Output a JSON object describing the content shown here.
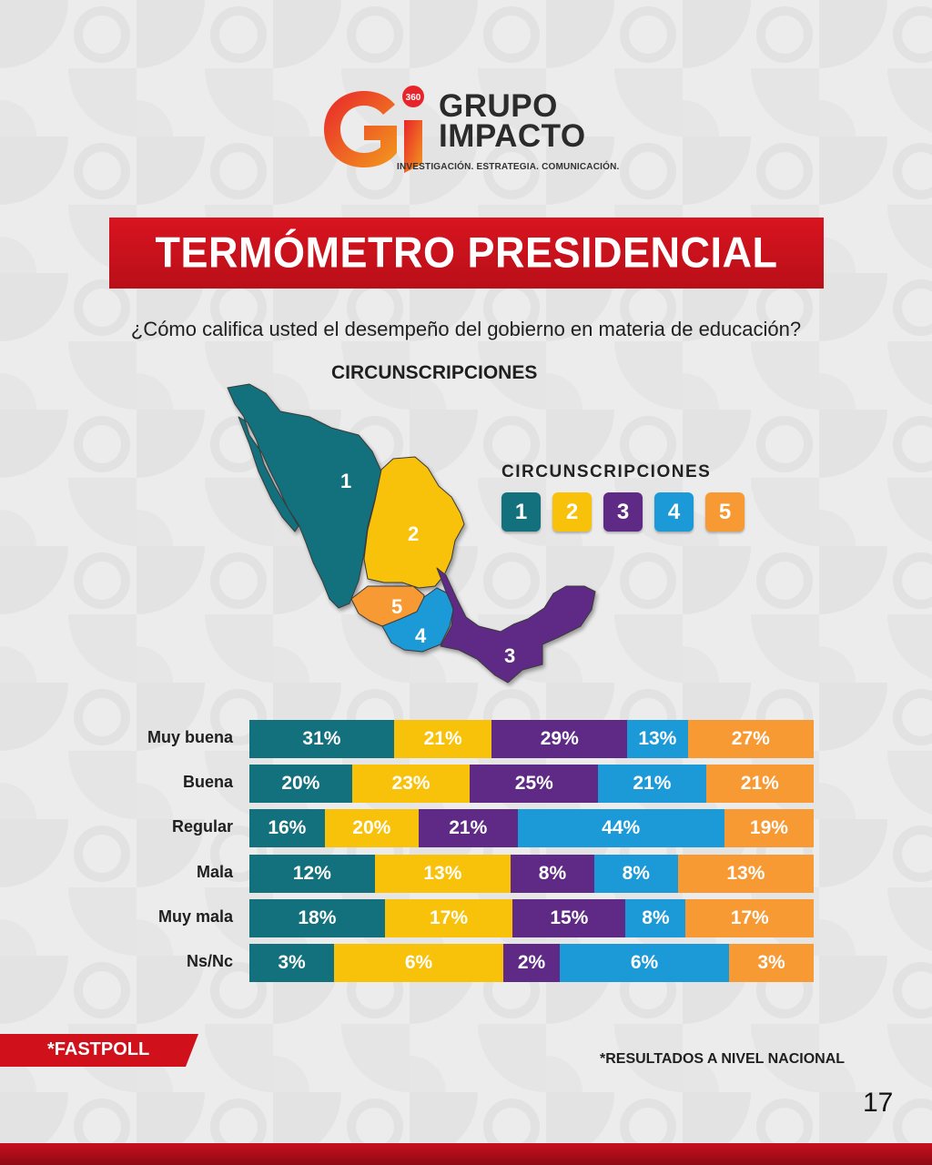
{
  "logo": {
    "badge": "360",
    "line1": "GRUPO",
    "line2": "IMPACTO",
    "tagline": "INVESTIGACIÓN. ESTRATEGIA. COMUNICACIÓN."
  },
  "title": "TERMÓMETRO PRESIDENCIAL",
  "question": "¿Cómo califica usted el desempeño del gobierno en materia de educación?",
  "subtitle": "CIRCUNSCRIPCIONES",
  "legend": {
    "title": "CIRCUNSCRIPCIONES",
    "items": [
      {
        "label": "1",
        "color": "#13707d"
      },
      {
        "label": "2",
        "color": "#f8c20a"
      },
      {
        "label": "3",
        "color": "#5e2a86"
      },
      {
        "label": "4",
        "color": "#1c9ad8"
      },
      {
        "label": "5",
        "color": "#f79a34"
      }
    ]
  },
  "map_labels": [
    "1",
    "2",
    "3",
    "4",
    "5"
  ],
  "chart_data": {
    "type": "bar",
    "orientation": "horizontal",
    "stacked": true,
    "categories": [
      "Muy buena",
      "Buena",
      "Regular",
      "Mala",
      "Muy mala",
      "Ns/Nc"
    ],
    "series": [
      {
        "name": "1",
        "color": "#13707d",
        "values": [
          31,
          20,
          16,
          12,
          18,
          3
        ]
      },
      {
        "name": "2",
        "color": "#f8c20a",
        "values": [
          21,
          23,
          20,
          13,
          17,
          6
        ]
      },
      {
        "name": "3",
        "color": "#5e2a86",
        "values": [
          29,
          25,
          21,
          8,
          15,
          2
        ]
      },
      {
        "name": "4",
        "color": "#1c9ad8",
        "values": [
          13,
          21,
          44,
          8,
          8,
          6
        ]
      },
      {
        "name": "5",
        "color": "#f79a34",
        "values": [
          27,
          21,
          19,
          13,
          17,
          3
        ]
      }
    ],
    "value_suffix": "%"
  },
  "footer": {
    "fastpoll": "*FASTPOLL",
    "note": "*RESULTADOS A NIVEL NACIONAL",
    "page": "17"
  }
}
